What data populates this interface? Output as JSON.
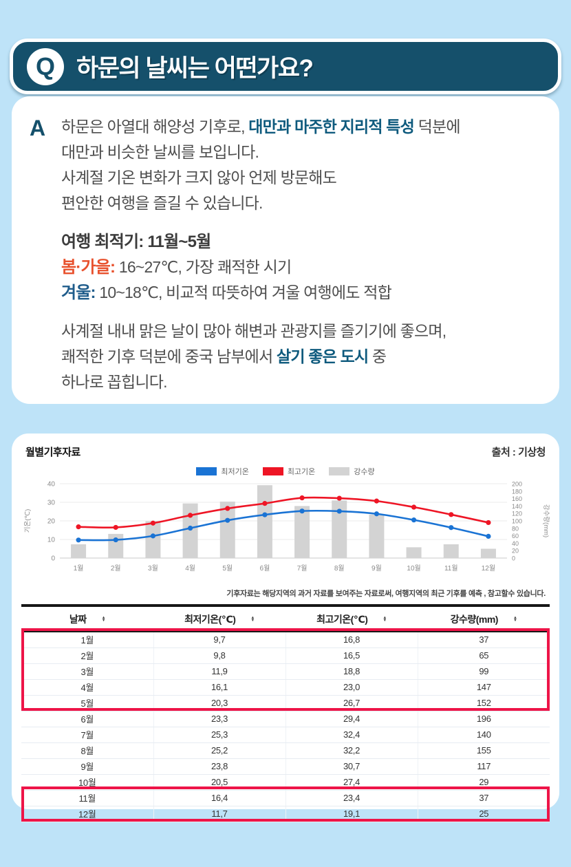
{
  "colors": {
    "page_bg": "#bee3f8",
    "header_teal": "#15506b",
    "accent_teal": "#0e5a7d",
    "spring_red": "#e8512d",
    "winter_blue": "#1f5c8b",
    "highlight_box": "#ee1448"
  },
  "question": {
    "badge": "Q",
    "title": "하문의 날씨는 어떤가요?"
  },
  "answer": {
    "marker": "A",
    "p1_pre": "하문은 아열대 해양성 기후로, ",
    "p1_bold": "대만과 마주한 지리적 특성",
    "p1_post": " 덕분에",
    "p1_line2": "대만과 비슷한 날씨를 보입니다.",
    "p1_line3": "사계절 기온 변화가 크지 않아 언제 방문해도",
    "p1_line4": "편안한 여행을 즐길 수 있습니다.",
    "best_time": "여행 최적기: 11월~5월",
    "spring_label": "봄·가을:",
    "spring_text": " 16~27℃, 가장 쾌적한 시기",
    "winter_label": "겨울:",
    "winter_text": " 10~18℃, 비교적 따뜻하여 겨울 여행에도 적합",
    "p3_line1": "사계절 내내 맑은 날이 많아 해변과 관광지를 즐기기에 좋으며,",
    "p3_pre": "쾌적한 기후 덕분에 중국 남부에서 ",
    "p3_bold": "살기 좋은 도시",
    "p3_post": " 중",
    "p3_line3": "하나로 꼽힙니다."
  },
  "climate": {
    "title": "월별기후자료",
    "source": "출처 : 기상청",
    "note": "기후자료는 해당지역의 과거 자료를 보여주는 자료로써, 여행지역의 최근 기후를 예측 , 참고할수 있습니다.",
    "legend": [
      {
        "label": "최저기온",
        "color": "#1a73d4"
      },
      {
        "label": "최고기온",
        "color": "#ee1525"
      },
      {
        "label": "강수량",
        "color": "#d3d3d3"
      }
    ],
    "chart_data": {
      "type": "line",
      "categories": [
        "1월",
        "2월",
        "3월",
        "4월",
        "5월",
        "6월",
        "7월",
        "8월",
        "9월",
        "10월",
        "11월",
        "12월"
      ],
      "series": [
        {
          "name": "최저기온",
          "type": "line",
          "axis": "left",
          "color": "#1a73d4",
          "values": [
            9.7,
            9.8,
            11.9,
            16.1,
            20.3,
            23.3,
            25.3,
            25.2,
            23.8,
            20.5,
            16.4,
            11.7
          ]
        },
        {
          "name": "최고기온",
          "type": "line",
          "axis": "left",
          "color": "#ee1525",
          "values": [
            16.8,
            16.5,
            18.8,
            23.0,
            26.7,
            29.4,
            32.4,
            32.2,
            30.7,
            27.4,
            23.4,
            19.1
          ]
        },
        {
          "name": "강수량",
          "type": "bar",
          "axis": "right",
          "color": "#d3d3d3",
          "values": [
            37,
            65,
            99,
            147,
            152,
            196,
            140,
            155,
            117,
            29,
            37,
            25
          ]
        }
      ],
      "ylabel_left": "기온(℃)",
      "ylabel_right": "강수량(mm)",
      "ylim_left": [
        0,
        40
      ],
      "ylim_right": [
        0,
        200
      ],
      "yticks_left": [
        0,
        10,
        20,
        30,
        40
      ],
      "yticks_right": [
        0,
        20,
        40,
        60,
        80,
        100,
        120,
        140,
        160,
        180,
        200
      ],
      "grid": true,
      "legend_position": "top"
    },
    "table": {
      "columns": [
        "날짜",
        "최저기온(℃)",
        "최고기온(℃)",
        "강수량(mm)"
      ],
      "rows": [
        [
          "1월",
          "9,7",
          "16,8",
          "37"
        ],
        [
          "2월",
          "9,8",
          "16,5",
          "65"
        ],
        [
          "3월",
          "11,9",
          "18,8",
          "99"
        ],
        [
          "4월",
          "16,1",
          "23,0",
          "147"
        ],
        [
          "5월",
          "20,3",
          "26,7",
          "152"
        ],
        [
          "6월",
          "23,3",
          "29,4",
          "196"
        ],
        [
          "7월",
          "25,3",
          "32,4",
          "140"
        ],
        [
          "8월",
          "25,2",
          "32,2",
          "155"
        ],
        [
          "9월",
          "23,8",
          "30,7",
          "117"
        ],
        [
          "10월",
          "20,5",
          "27,4",
          "29"
        ],
        [
          "11월",
          "16,4",
          "23,4",
          "37"
        ],
        [
          "12월",
          "11,7",
          "19,1",
          "25"
        ]
      ],
      "highlight_groups": [
        [
          0,
          4
        ],
        [
          10,
          11
        ]
      ]
    }
  }
}
